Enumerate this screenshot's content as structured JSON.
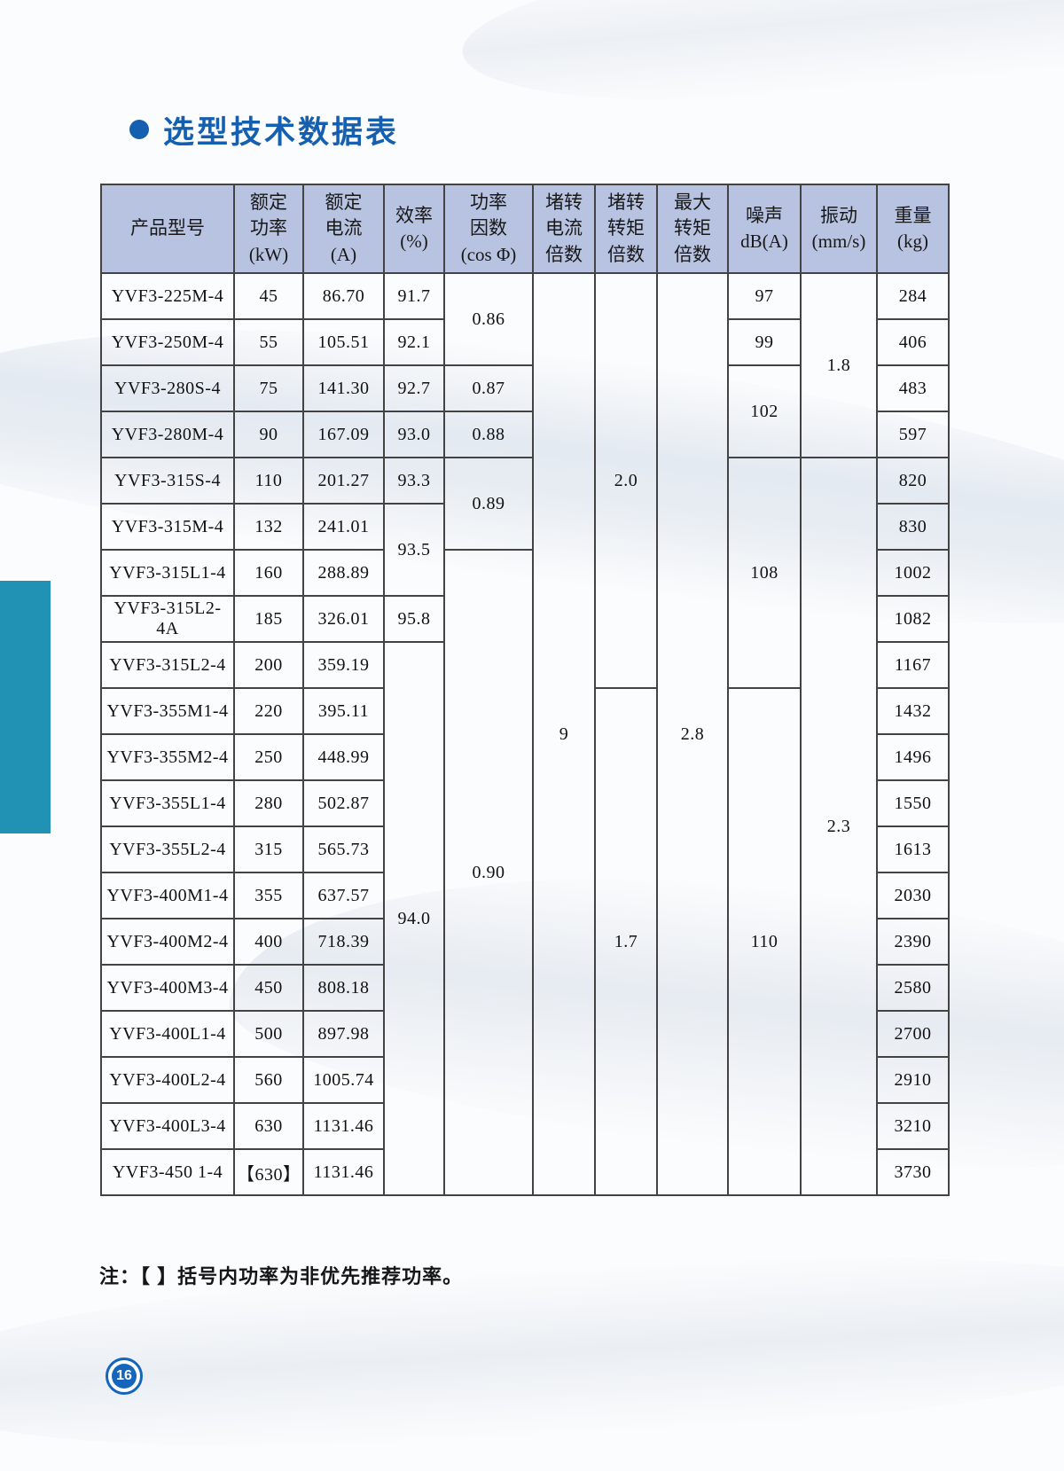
{
  "page": {
    "title": "选型技术数据表",
    "footnote": "注：【 】括号内功率为非优先推荐功率。",
    "page_number": "16"
  },
  "colors": {
    "title_blue": "#155fb0",
    "header_bg": "#b7c3e0",
    "table_border": "#434343",
    "teal_bar": "#2292b4",
    "page_badge_blue": "#1565bd"
  },
  "table": {
    "headers": [
      {
        "lines": [
          "产品型号"
        ]
      },
      {
        "lines": [
          "额定",
          "功率",
          "(kW)"
        ]
      },
      {
        "lines": [
          "额定",
          "电流",
          "(A)"
        ]
      },
      {
        "lines": [
          "效率",
          "(%)"
        ]
      },
      {
        "lines": [
          "功率",
          "因数",
          "(cos Φ)"
        ]
      },
      {
        "lines": [
          "堵转",
          "电流",
          "倍数"
        ]
      },
      {
        "lines": [
          "堵转",
          "转矩",
          "倍数"
        ]
      },
      {
        "lines": [
          "最大",
          "转矩",
          "倍数"
        ]
      },
      {
        "lines": [
          "噪声",
          "dB(A)"
        ]
      },
      {
        "lines": [
          "振动",
          "(mm/s)"
        ]
      },
      {
        "lines": [
          "重量",
          "(kg)"
        ]
      }
    ],
    "rows": [
      [
        {
          "t": "YVF3-225M-4"
        },
        {
          "t": "45"
        },
        {
          "t": "86.70"
        },
        {
          "t": "91.7"
        },
        {
          "t": "0.86",
          "rs": 2
        },
        {
          "t": "9",
          "rs": 20
        },
        {
          "t": "2.0",
          "rs": 9
        },
        {
          "t": "2.8",
          "rs": 20
        },
        {
          "t": "97"
        },
        {
          "t": "1.8",
          "rs": 4
        },
        {
          "t": "284"
        }
      ],
      [
        {
          "t": "YVF3-250M-4"
        },
        {
          "t": "55"
        },
        {
          "t": "105.51"
        },
        {
          "t": "92.1"
        },
        {
          "t": "99"
        },
        {
          "t": "406"
        }
      ],
      [
        {
          "t": "YVF3-280S-4"
        },
        {
          "t": "75"
        },
        {
          "t": "141.30"
        },
        {
          "t": "92.7"
        },
        {
          "t": "0.87"
        },
        {
          "t": "102",
          "rs": 2
        },
        {
          "t": "483"
        }
      ],
      [
        {
          "t": "YVF3-280M-4"
        },
        {
          "t": "90"
        },
        {
          "t": "167.09"
        },
        {
          "t": "93.0"
        },
        {
          "t": "0.88"
        },
        {
          "t": "597"
        }
      ],
      [
        {
          "t": "YVF3-315S-4"
        },
        {
          "t": "110"
        },
        {
          "t": "201.27"
        },
        {
          "t": "93.3"
        },
        {
          "t": "0.89",
          "rs": 2
        },
        {
          "t": "108",
          "rs": 5
        },
        {
          "t": "2.3",
          "rs": 16
        },
        {
          "t": "820"
        }
      ],
      [
        {
          "t": "YVF3-315M-4"
        },
        {
          "t": "132"
        },
        {
          "t": "241.01"
        },
        {
          "t": "93.5",
          "rs": 2
        },
        {
          "t": "830"
        }
      ],
      [
        {
          "t": "YVF3-315L1-4"
        },
        {
          "t": "160"
        },
        {
          "t": "288.89"
        },
        {
          "t": "0.90",
          "rs": 14
        },
        {
          "t": "1002"
        }
      ],
      [
        {
          "t": "YVF3-315L2-4A"
        },
        {
          "t": "185"
        },
        {
          "t": "326.01"
        },
        {
          "t": "95.8"
        },
        {
          "t": "1082"
        }
      ],
      [
        {
          "t": "YVF3-315L2-4"
        },
        {
          "t": "200"
        },
        {
          "t": "359.19"
        },
        {
          "t": "94.0",
          "rs": 12
        },
        {
          "t": "1167"
        }
      ],
      [
        {
          "t": "YVF3-355M1-4"
        },
        {
          "t": "220"
        },
        {
          "t": "395.11"
        },
        {
          "t": "1.7",
          "rs": 11
        },
        {
          "t": "110",
          "rs": 11
        },
        {
          "t": "1432"
        }
      ],
      [
        {
          "t": "YVF3-355M2-4"
        },
        {
          "t": "250"
        },
        {
          "t": "448.99"
        },
        {
          "t": "1496"
        }
      ],
      [
        {
          "t": "YVF3-355L1-4"
        },
        {
          "t": "280"
        },
        {
          "t": "502.87"
        },
        {
          "t": "1550"
        }
      ],
      [
        {
          "t": "YVF3-355L2-4"
        },
        {
          "t": "315"
        },
        {
          "t": "565.73"
        },
        {
          "t": "1613"
        }
      ],
      [
        {
          "t": "YVF3-400M1-4"
        },
        {
          "t": "355"
        },
        {
          "t": "637.57"
        },
        {
          "t": "2030"
        }
      ],
      [
        {
          "t": "YVF3-400M2-4"
        },
        {
          "t": "400"
        },
        {
          "t": "718.39"
        },
        {
          "t": "2390"
        }
      ],
      [
        {
          "t": "YVF3-400M3-4"
        },
        {
          "t": "450"
        },
        {
          "t": "808.18"
        },
        {
          "t": "2580"
        }
      ],
      [
        {
          "t": "YVF3-400L1-4"
        },
        {
          "t": "500"
        },
        {
          "t": "897.98"
        },
        {
          "t": "2700"
        }
      ],
      [
        {
          "t": "YVF3-400L2-4"
        },
        {
          "t": "560"
        },
        {
          "t": "1005.74"
        },
        {
          "t": "2910"
        }
      ],
      [
        {
          "t": "YVF3-400L3-4"
        },
        {
          "t": "630"
        },
        {
          "t": "1131.46"
        },
        {
          "t": "3210"
        }
      ],
      [
        {
          "t": "YVF3-450 1-4"
        },
        {
          "t": "【630】"
        },
        {
          "t": "1131.46"
        },
        {
          "t": "3730"
        }
      ]
    ]
  }
}
